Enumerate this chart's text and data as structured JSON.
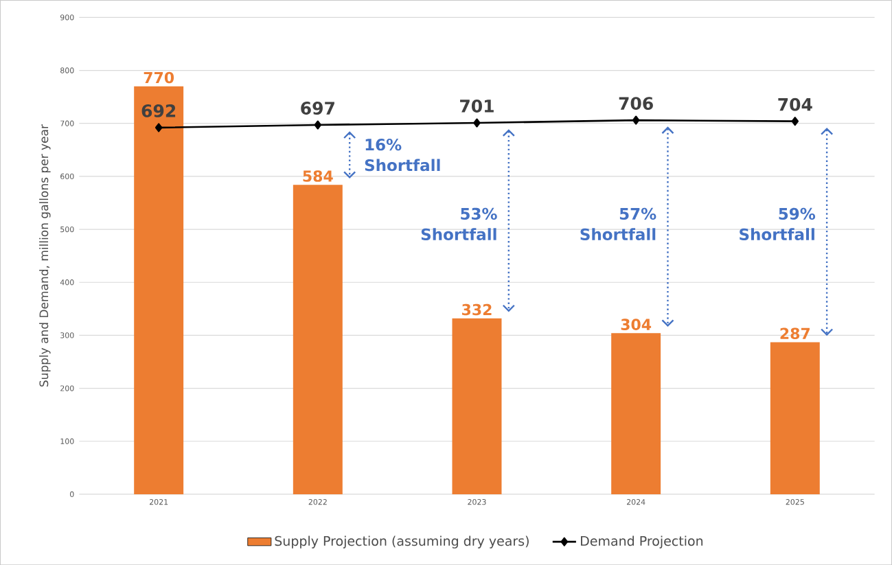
{
  "chart_data": {
    "type": "bar",
    "ylabel": "Supply and Demand, million gallons per year",
    "categories": [
      "2021",
      "2022",
      "2023",
      "2024",
      "2025"
    ],
    "series": [
      {
        "name": "Supply Projection (assuming dry years)",
        "color": "#ed7d31",
        "values": [
          770,
          584,
          332,
          304,
          287
        ]
      },
      {
        "name": "Demand Projection",
        "type": "line",
        "color": "#000000",
        "marker": "diamond",
        "values": [
          692,
          697,
          701,
          706,
          704
        ]
      }
    ],
    "ylim": [
      0,
      900
    ],
    "yticks": [
      0,
      100,
      200,
      300,
      400,
      500,
      600,
      700,
      800,
      900
    ],
    "grid": "y",
    "legend": "bottom",
    "data_labels": true,
    "annotations": [
      "16% Shortfall",
      "53% Shortfall",
      "57% Shortfall",
      "59% Shortfall"
    ]
  }
}
